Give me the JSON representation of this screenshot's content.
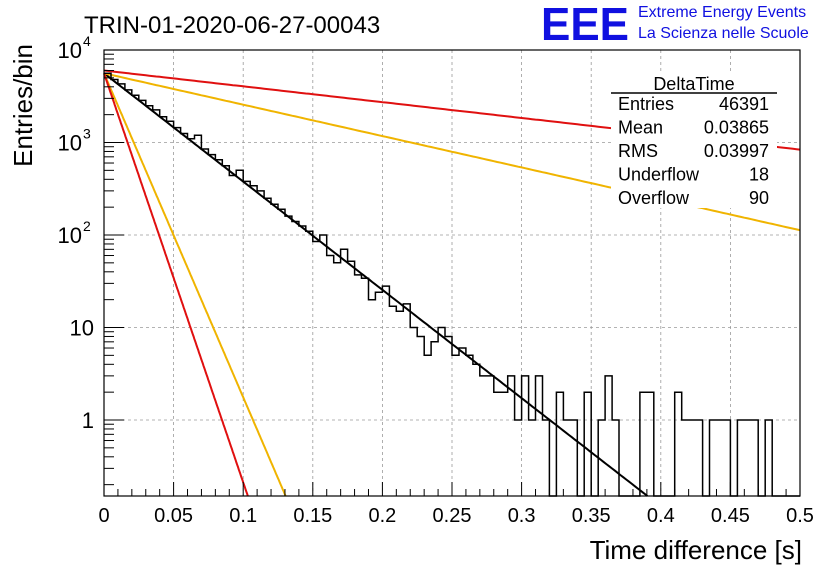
{
  "header": {
    "run_title": "TRIN-01-2020-06-27-00043",
    "logo_text": "EEE",
    "project_line1": "Extreme Energy Events",
    "project_line2": "La Scienza nelle Scuole",
    "logo_color": "#1010e0"
  },
  "stats": {
    "title": "DeltaTime",
    "rows": [
      {
        "label": "Entries",
        "value": "46391"
      },
      {
        "label": "Mean",
        "value": "0.03865"
      },
      {
        "label": "RMS",
        "value": "0.03997"
      },
      {
        "label": "Underflow",
        "value": "18"
      },
      {
        "label": "Overflow",
        "value": "90"
      }
    ]
  },
  "chart_data": {
    "type": "line",
    "xlabel": "Time difference [s]",
    "ylabel": "Entries/bin",
    "xlim": [
      0,
      0.5
    ],
    "ylim": [
      0.15,
      10000
    ],
    "log_y": true,
    "grid": true,
    "x_ticks": [
      "0",
      "0.05",
      "0.1",
      "0.15",
      "0.2",
      "0.25",
      "0.3",
      "0.35",
      "0.4",
      "0.45",
      "0.5"
    ],
    "y_ticks": [
      {
        "value": 1,
        "label": "1"
      },
      {
        "value": 10,
        "label": "10"
      },
      {
        "value": 100,
        "label": "10",
        "exp": "2"
      },
      {
        "value": 1000,
        "label": "10",
        "exp": "3"
      },
      {
        "value": 10000,
        "label": "10",
        "exp": "4"
      }
    ],
    "histogram": {
      "bin_width": 0.005,
      "color": "#000000",
      "values": [
        5600,
        4800,
        4300,
        3700,
        3250,
        2850,
        2500,
        2250,
        1900,
        1700,
        1450,
        1250,
        1100,
        1200,
        850,
        740,
        650,
        560,
        440,
        500,
        380,
        340,
        300,
        250,
        215,
        190,
        160,
        140,
        125,
        110,
        85,
        100,
        60,
        50,
        70,
        52,
        37,
        34,
        20,
        24,
        28,
        17,
        15,
        18,
        10,
        8,
        5,
        7,
        10,
        8,
        5,
        6,
        5,
        4,
        3,
        3,
        2,
        2,
        3,
        1,
        3,
        1,
        3,
        1,
        0,
        2,
        1,
        1,
        0,
        2,
        0,
        1,
        3,
        1,
        0,
        0,
        0,
        2,
        2,
        0,
        0,
        0,
        2,
        1,
        1,
        1,
        0,
        1,
        1,
        1,
        0,
        1,
        1,
        1,
        0,
        1,
        0,
        0,
        0,
        0
      ]
    },
    "fits": [
      {
        "color": "#000000",
        "amplitude": 5600,
        "tau": 0.0371,
        "x_end": 0.41
      },
      {
        "color": "#f0b400",
        "amplitude": 5600,
        "tau": 0.0124,
        "x_end": 0.135
      },
      {
        "color": "#f0b400",
        "amplitude": 5600,
        "tau": 0.128,
        "x_end": 0.5
      },
      {
        "color": "#e01010",
        "amplitude": 5600,
        "tau": 0.00982,
        "x_end": 0.11
      },
      {
        "color": "#e01010",
        "amplitude": 6000,
        "tau": 0.254,
        "x_end": 0.5
      }
    ]
  }
}
